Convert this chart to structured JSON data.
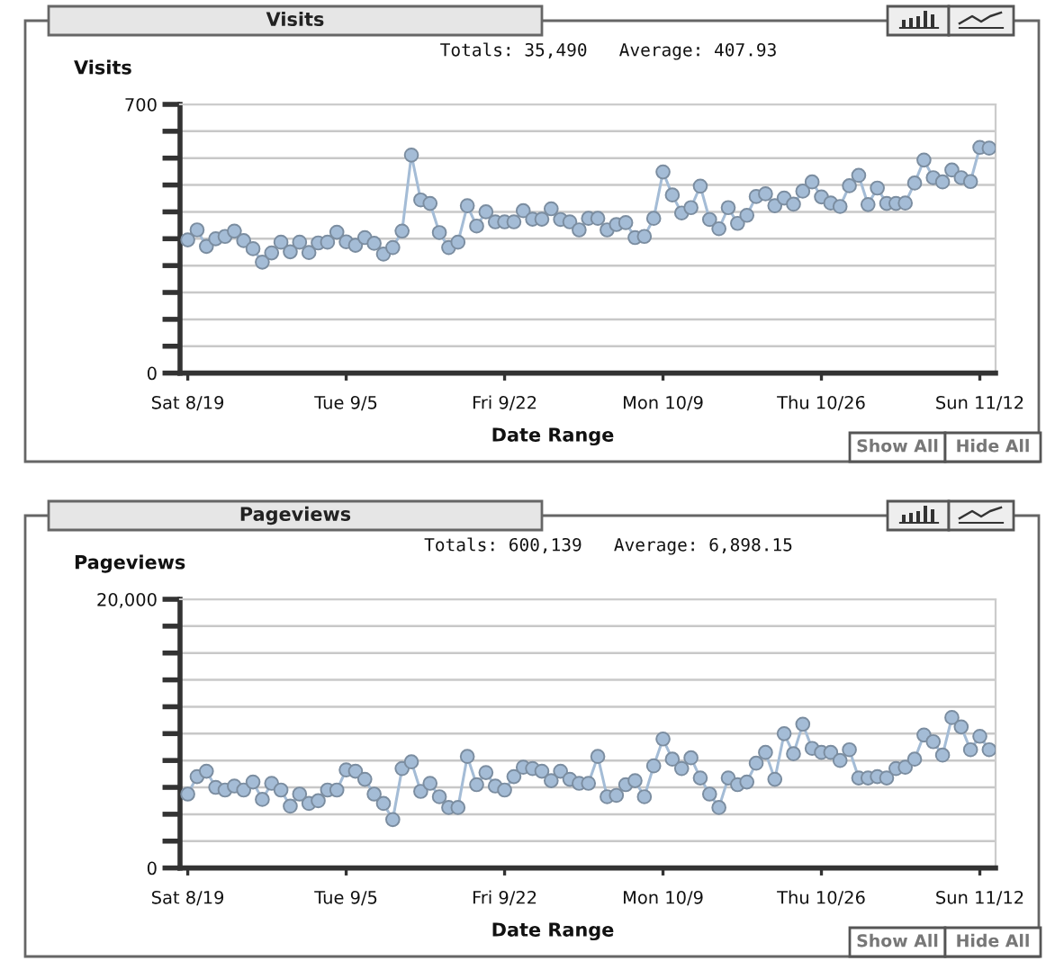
{
  "chart_data": [
    {
      "type": "line",
      "title": "Visits",
      "subtitle": "Totals: 35,490   Average: 407.93",
      "ylabel": "Visits",
      "xlabel": "Date Range",
      "categories": [
        "Sat 8/19",
        null,
        null,
        null,
        null,
        null,
        null,
        null,
        null,
        null,
        null,
        null,
        null,
        null,
        null,
        null,
        null,
        "Tue 9/5",
        null,
        null,
        null,
        null,
        null,
        null,
        null,
        null,
        null,
        null,
        null,
        null,
        null,
        null,
        null,
        null,
        "Fri 9/22",
        null,
        null,
        null,
        null,
        null,
        null,
        null,
        null,
        null,
        null,
        null,
        null,
        null,
        null,
        null,
        null,
        "Mon 10/9",
        null,
        null,
        null,
        null,
        null,
        null,
        null,
        null,
        null,
        null,
        null,
        null,
        null,
        null,
        null,
        null,
        "Thu 10/26",
        null,
        null,
        null,
        null,
        null,
        null,
        null,
        null,
        null,
        null,
        null,
        null,
        null,
        null,
        null,
        null,
        "Sun 11/12",
        null
      ],
      "values": [
        347,
        373,
        330,
        350,
        356,
        370,
        345,
        324,
        289,
        313,
        341,
        316,
        341,
        314,
        339,
        341,
        367,
        342,
        333,
        353,
        338,
        310,
        327,
        370,
        568,
        451,
        442,
        366,
        327,
        341,
        436,
        383,
        420,
        394,
        394,
        394,
        423,
        401,
        401,
        428,
        400,
        394,
        373,
        403,
        403,
        373,
        387,
        392,
        353,
        356,
        403,
        524,
        464,
        417,
        431,
        487,
        400,
        376,
        431,
        390,
        411,
        460,
        467,
        436,
        456,
        440,
        474,
        498,
        459,
        443,
        434,
        488,
        515,
        439,
        482,
        442,
        442,
        443,
        495,
        555,
        509,
        498,
        529,
        509,
        499,
        588,
        586
      ],
      "color": "#a4bcd6",
      "ylim": [
        0,
        700
      ],
      "yticks": [
        0,
        {
          "value": 70,
          "label": null
        },
        {
          "value": 140,
          "label": null
        },
        {
          "value": 210,
          "label": null
        },
        {
          "value": 280,
          "label": null
        },
        {
          "value": 350,
          "label": null
        },
        {
          "value": 420,
          "label": null
        },
        {
          "value": 490,
          "label": null
        },
        {
          "value": 560,
          "label": null
        },
        {
          "value": 630,
          "label": null
        },
        700
      ],
      "grid": "y",
      "marker": "circle",
      "line_style": "solid",
      "annotations": [
        "Show All",
        "Hide All"
      ]
    },
    {
      "type": "line",
      "title": "Pageviews",
      "subtitle": "Totals: 600,139   Average: 6,898.15",
      "ylabel": "Pageviews",
      "xlabel": "Date Range",
      "categories": [
        "Sat 8/19",
        null,
        null,
        null,
        null,
        null,
        null,
        null,
        null,
        null,
        null,
        null,
        null,
        null,
        null,
        null,
        null,
        "Tue 9/5",
        null,
        null,
        null,
        null,
        null,
        null,
        null,
        null,
        null,
        null,
        null,
        null,
        null,
        null,
        null,
        null,
        "Fri 9/22",
        null,
        null,
        null,
        null,
        null,
        null,
        null,
        null,
        null,
        null,
        null,
        null,
        null,
        null,
        null,
        null,
        "Mon 10/9",
        null,
        null,
        null,
        null,
        null,
        null,
        null,
        null,
        null,
        null,
        null,
        null,
        null,
        null,
        null,
        null,
        "Thu 10/26",
        null,
        null,
        null,
        null,
        null,
        null,
        null,
        null,
        null,
        null,
        null,
        null,
        null,
        null,
        null,
        null,
        "Sun 11/12",
        null
      ],
      "values": [
        5500,
        6800,
        7200,
        6000,
        5800,
        6100,
        5800,
        6400,
        5100,
        6300,
        5800,
        4600,
        5500,
        4800,
        5000,
        5800,
        5800,
        7300,
        7200,
        6600,
        5500,
        4800,
        3600,
        7400,
        7900,
        5700,
        6300,
        5300,
        4500,
        4500,
        8300,
        6200,
        7100,
        6100,
        5800,
        6800,
        7500,
        7400,
        7200,
        6500,
        7200,
        6600,
        6300,
        6300,
        8300,
        5300,
        5400,
        6200,
        6500,
        5300,
        7600,
        9600,
        8100,
        7400,
        8200,
        6700,
        5500,
        4500,
        6700,
        6200,
        6400,
        7800,
        8600,
        6600,
        10000,
        8500,
        10700,
        8900,
        8600,
        8600,
        8000,
        8800,
        6700,
        6700,
        6800,
        6700,
        7400,
        7500,
        8100,
        9900,
        9400,
        8400,
        11200,
        10500,
        8800,
        9800,
        8800
      ],
      "color": "#a4bcd6",
      "ylim": [
        0,
        20000
      ],
      "yticks": [
        0,
        {
          "value": 2000,
          "label": null
        },
        {
          "value": 4000,
          "label": null
        },
        {
          "value": 6000,
          "label": null
        },
        {
          "value": 8000,
          "label": null
        },
        {
          "value": 10000,
          "label": null
        },
        {
          "value": 12000,
          "label": null
        },
        {
          "value": 14000,
          "label": null
        },
        {
          "value": 16000,
          "label": null
        },
        {
          "value": 18000,
          "label": null
        },
        {
          "value": 20000,
          "label": "20,000"
        }
      ],
      "grid": "y",
      "marker": "circle",
      "line_style": "solid",
      "annotations": [
        "Show All",
        "Hide All"
      ]
    }
  ]
}
